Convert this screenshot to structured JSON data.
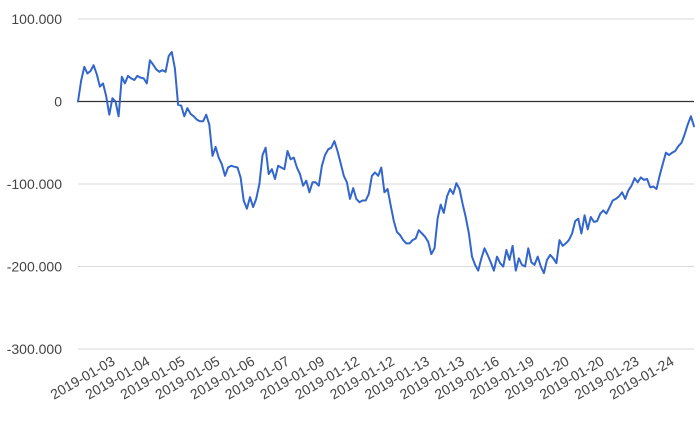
{
  "chart_data": {
    "type": "line",
    "title": "",
    "xlabel": "",
    "ylabel": "",
    "ylim": [
      -300000,
      100000
    ],
    "y_ticks": [
      100000,
      0,
      -100000,
      -200000,
      -300000
    ],
    "y_tick_labels": [
      "100.000",
      "0",
      "-100.000",
      "-200.000",
      "-300.000"
    ],
    "x_tick_labels": [
      "2019-01-03",
      "2019-01-04",
      "2019-01-05",
      "2019-01-05",
      "2019-01-06",
      "2019-01-07",
      "2019-01-09",
      "2019-01-12",
      "2019-01-12",
      "2019-01-13",
      "2019-01-13",
      "2019-01-16",
      "2019-01-19",
      "2019-01-20",
      "2019-01-20",
      "2019-01-23",
      "2019-01-24"
    ],
    "grid": true,
    "legend": "none",
    "series": [
      {
        "color": "#3366cc",
        "values": [
          0,
          25000,
          42000,
          34000,
          37000,
          44000,
          33000,
          18000,
          22000,
          7000,
          -16000,
          4000,
          0,
          -18000,
          30000,
          22000,
          31000,
          28000,
          26000,
          31000,
          29000,
          28000,
          22000,
          50000,
          45000,
          39000,
          36000,
          38000,
          36000,
          55000,
          60000,
          40000,
          -4000,
          -5000,
          -18000,
          -8000,
          -15000,
          -18000,
          -22000,
          -24000,
          -24000,
          -16000,
          -28000,
          -66000,
          -55000,
          -68000,
          -76000,
          -90000,
          -80000,
          -78000,
          -79000,
          -80000,
          -92000,
          -120000,
          -130000,
          -116000,
          -128000,
          -118000,
          -100000,
          -65000,
          -56000,
          -88000,
          -82000,
          -94000,
          -78000,
          -80000,
          -82000,
          -60000,
          -70000,
          -68000,
          -80000,
          -88000,
          -102000,
          -96000,
          -110000,
          -98000,
          -98000,
          -102000,
          -78000,
          -65000,
          -58000,
          -56000,
          -48000,
          -60000,
          -75000,
          -90000,
          -98000,
          -118000,
          -105000,
          -118000,
          -122000,
          -120000,
          -120000,
          -112000,
          -90000,
          -86000,
          -90000,
          -80000,
          -110000,
          -106000,
          -126000,
          -145000,
          -158000,
          -162000,
          -168000,
          -172000,
          -172000,
          -168000,
          -166000,
          -156000,
          -160000,
          -164000,
          -170000,
          -185000,
          -178000,
          -142000,
          -125000,
          -135000,
          -115000,
          -106000,
          -112000,
          -99000,
          -106000,
          -124000,
          -140000,
          -160000,
          -188000,
          -198000,
          -205000,
          -190000,
          -178000,
          -186000,
          -195000,
          -205000,
          -188000,
          -196000,
          -200000,
          -180000,
          -192000,
          -175000,
          -205000,
          -190000,
          -198000,
          -200000,
          -178000,
          -195000,
          -198000,
          -188000,
          -200000,
          -208000,
          -192000,
          -186000,
          -190000,
          -196000,
          -168000,
          -175000,
          -172000,
          -168000,
          -160000,
          -145000,
          -142000,
          -160000,
          -138000,
          -155000,
          -140000,
          -146000,
          -145000,
          -136000,
          -132000,
          -136000,
          -128000,
          -120000,
          -118000,
          -115000,
          -110000,
          -118000,
          -108000,
          -102000,
          -93000,
          -98000,
          -92000,
          -95000,
          -94000,
          -104000,
          -103000,
          -106000,
          -90000,
          -76000,
          -62000,
          -65000,
          -62000,
          -60000,
          -54000,
          -50000,
          -40000,
          -28000,
          -18000,
          -30000
        ]
      }
    ]
  }
}
